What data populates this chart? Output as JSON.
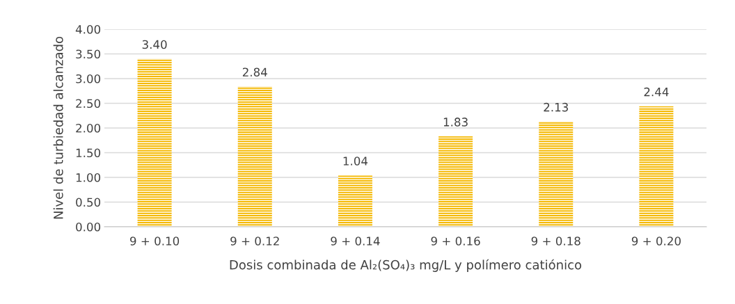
{
  "chart_data": {
    "type": "bar",
    "xlabel": "Dosis combinada de Al₂(SO₄)₃ mg/L y polímero catiónico",
    "ylabel": "Nivel de turbiedad alcanzado",
    "categories": [
      "9 + 0.10",
      "9 + 0.12",
      "9 + 0.14",
      "9 + 0.16",
      "9 + 0.18",
      "9 + 0.20"
    ],
    "values": [
      3.4,
      2.84,
      1.04,
      1.83,
      2.13,
      2.44
    ],
    "color": "#f5b800",
    "value_labels": [
      "3.40",
      "2.84",
      "1.04",
      "1.83",
      "2.13",
      "2.44"
    ],
    "ylim": [
      0,
      4
    ],
    "yticks": [
      {
        "value": 0,
        "label": "0.00"
      },
      {
        "value": 0.5,
        "label": "0.50"
      },
      {
        "value": 1,
        "label": "1.00"
      },
      {
        "value": 1.5,
        "label": "1.50"
      },
      {
        "value": 2,
        "label": "2.00"
      },
      {
        "value": 2.5,
        "label": "2.50"
      },
      {
        "value": 3,
        "label": "3.00"
      },
      {
        "value": 3.5,
        "label": "3.50"
      },
      {
        "value": 4,
        "label": "4.00"
      }
    ],
    "grid": "y",
    "legend": false
  }
}
